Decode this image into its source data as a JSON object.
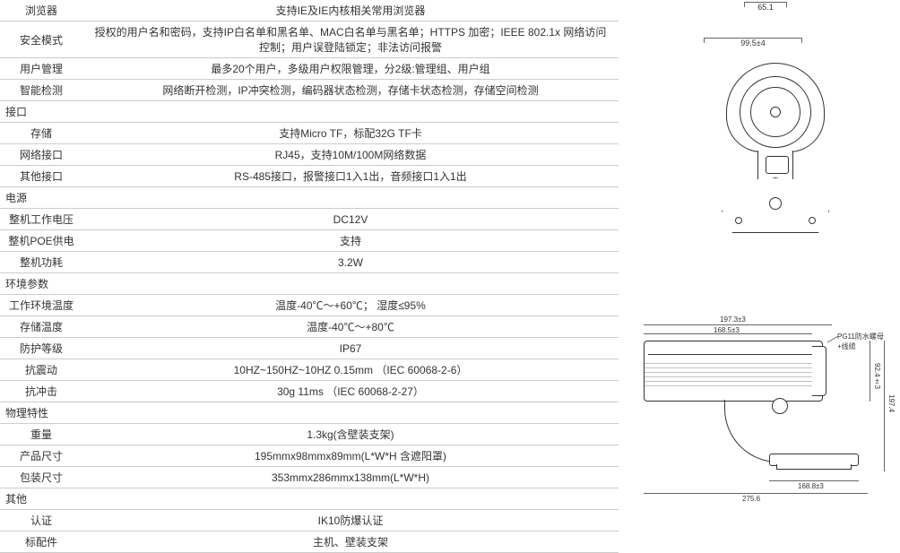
{
  "table": {
    "rows": [
      {
        "type": "row",
        "label": "浏览器",
        "value": "支持IE及IE内核相关常用浏览器"
      },
      {
        "type": "row",
        "label": "安全模式",
        "value": "授权的用户名和密码，支持IP白名单和黑名单、MAC白名单与黑名单；HTTPS 加密；IEEE 802.1x 网络访问控制；用户误登陆锁定；非法访问报警"
      },
      {
        "type": "row",
        "label": "用户管理",
        "value": "最多20个用户，多级用户权限管理，分2级:管理组、用户组"
      },
      {
        "type": "row",
        "label": "智能检测",
        "value": "网络断开检测，IP冲突检测，编码器状态检测，存储卡状态检测，存储空间检测"
      },
      {
        "type": "section",
        "label": "接口"
      },
      {
        "type": "row",
        "label": "存储",
        "value": "支持Micro TF，标配32G TF卡"
      },
      {
        "type": "row",
        "label": "网络接口",
        "value": "RJ45，支持10M/100M网络数据"
      },
      {
        "type": "row",
        "label": "其他接口",
        "value": "RS-485接口，报警接口1入1出，音频接口1入1出"
      },
      {
        "type": "section",
        "label": "电源"
      },
      {
        "type": "row",
        "label": "整机工作电压",
        "value": "DC12V"
      },
      {
        "type": "row",
        "label": "整机POE供电",
        "value": "支持"
      },
      {
        "type": "row",
        "label": "整机功耗",
        "value": "3.2W"
      },
      {
        "type": "section",
        "label": "环境参数"
      },
      {
        "type": "row",
        "label": "工作环境温度",
        "value": "温度-40℃～+60℃； 湿度≤95%"
      },
      {
        "type": "row",
        "label": "存储温度",
        "value": "温度-40℃～+80℃"
      },
      {
        "type": "row",
        "label": "防护等级",
        "value": "IP67"
      },
      {
        "type": "row",
        "label": "抗震动",
        "value": "10HZ~150HZ~10HZ   0.15mm  （IEC 60068-2-6）"
      },
      {
        "type": "row",
        "label": "抗冲击",
        "value": "30g  11ms （IEC 60068-2-27）"
      },
      {
        "type": "section",
        "label": "物理特性"
      },
      {
        "type": "row",
        "label": "重量",
        "value": "1.3kg(含壁装支架)"
      },
      {
        "type": "row",
        "label": "产品尺寸",
        "value": "195mmx98mmx89mm(L*W*H 含遮阳罩)"
      },
      {
        "type": "row",
        "label": "包装尺寸",
        "value": "353mmx286mmx138mm(L*W*H)"
      },
      {
        "type": "section",
        "label": "其他"
      },
      {
        "type": "row",
        "label": "认证",
        "value": "IK10防爆认证"
      },
      {
        "type": "row",
        "label": "标配件",
        "value": "主机、壁装支架"
      }
    ]
  },
  "diagrams": {
    "dim_65": "65.1",
    "dim_99": "99.5±4",
    "side": {
      "d1": "197.3±3",
      "d2": "168.5±3",
      "d3": "92.4±3",
      "d4": "197.4",
      "d5": "168.8±3",
      "d6": "275.6",
      "callout": "PG11防水螺母+线缆"
    }
  },
  "style": {
    "border_color": "#cccccc",
    "text_color": "#333333",
    "font_size_table": 12,
    "font_size_dim": 8
  }
}
